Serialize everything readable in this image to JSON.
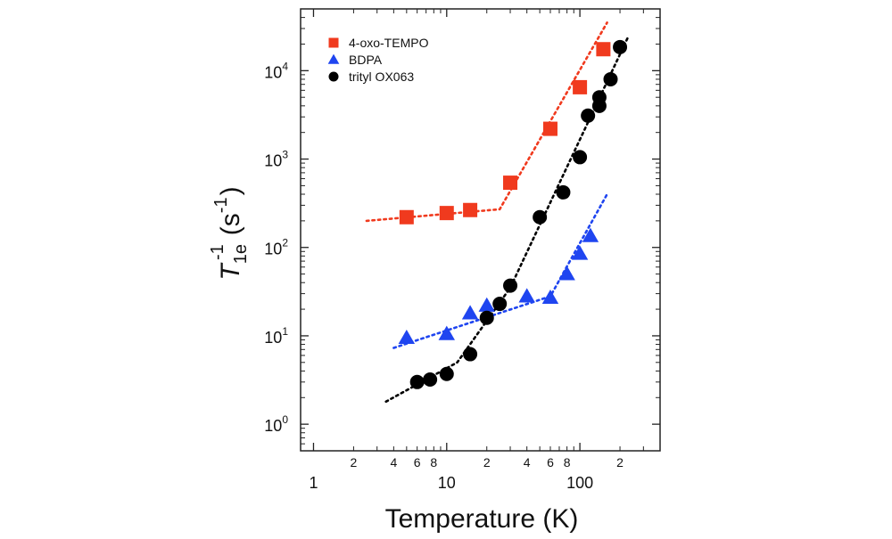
{
  "chart_data": {
    "type": "scatter",
    "title": "",
    "xlabel": "Temperature (K)",
    "ylabel": {
      "symbol": "T",
      "subscript": "1e",
      "superscript": "-1",
      "unit_main": "(s",
      "unit_sup": "-1",
      "unit_close": ")"
    },
    "xscale": "log",
    "yscale": "log",
    "xlim": [
      0.8,
      400
    ],
    "ylim": [
      0.5,
      50000
    ],
    "x_major_ticks": [
      1,
      10,
      100
    ],
    "x_major_labels": [
      "1",
      "10",
      "100"
    ],
    "x_minor_ticks": [
      2,
      4,
      6,
      8,
      20,
      40,
      60,
      80,
      200
    ],
    "x_minor_labels": [
      "2",
      "4",
      "6",
      "8",
      "2",
      "4",
      "6",
      "8",
      "2"
    ],
    "y_major_ticks": [
      1,
      10,
      100,
      1000,
      10000
    ],
    "y_major_labels": [
      {
        "base": "10",
        "exp": "0"
      },
      {
        "base": "10",
        "exp": "1"
      },
      {
        "base": "10",
        "exp": "2"
      },
      {
        "base": "10",
        "exp": "3"
      },
      {
        "base": "10",
        "exp": "4"
      }
    ],
    "legend_position": "top-left",
    "series": [
      {
        "name": "4-oxo-TEMPO",
        "marker": "square",
        "color": "#f03a1e",
        "x": [
          5,
          10,
          15,
          30,
          60,
          100,
          150
        ],
        "y": [
          220,
          245,
          265,
          540,
          2200,
          6500,
          17500
        ],
        "fit": [
          [
            2.5,
            200
          ],
          [
            25,
            270
          ],
          [
            160,
            35000
          ]
        ]
      },
      {
        "name": "BDPA",
        "marker": "triangle",
        "color": "#1f45f0",
        "x": [
          5,
          10,
          15,
          20,
          40,
          60,
          80,
          100,
          120
        ],
        "y": [
          9.5,
          10.5,
          18,
          22,
          28,
          27,
          50,
          85,
          135
        ],
        "fit": [
          [
            4,
            7.3
          ],
          [
            60,
            28
          ],
          [
            160,
            400
          ]
        ]
      },
      {
        "name": "trityl OX063",
        "marker": "circle",
        "color": "#000000",
        "x": [
          6,
          7.5,
          10,
          15,
          20,
          25,
          30,
          50,
          75,
          100,
          115,
          140,
          140,
          170,
          200
        ],
        "y": [
          3.0,
          3.2,
          3.7,
          6.2,
          16,
          23,
          37,
          220,
          420,
          1050,
          3100,
          5000,
          4000,
          8000,
          18500
        ],
        "fit": [
          [
            3.5,
            1.8
          ],
          [
            12,
            5
          ],
          [
            30,
            35
          ],
          [
            230,
            24000
          ]
        ]
      }
    ]
  }
}
